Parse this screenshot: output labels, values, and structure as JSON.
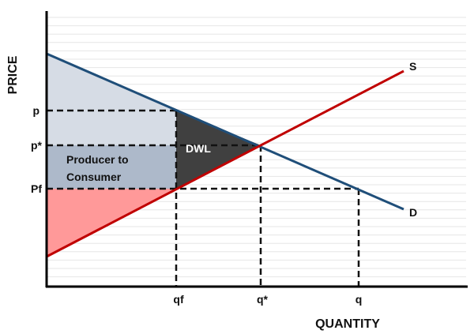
{
  "axes": {
    "x_label": "QUANTITY",
    "y_label": "PRICE"
  },
  "price_ticks": {
    "p": "p",
    "p_star": "p*",
    "pf": "Pf"
  },
  "quantity_ticks": {
    "qf": "qf",
    "q_star": "q*",
    "q": "q"
  },
  "curves": {
    "supply": "S",
    "demand": "D"
  },
  "regions": {
    "dwl": "DWL",
    "transfer_line1": "Producer to",
    "transfer_line2": "Consumer"
  },
  "colors": {
    "demand": "#1f4e79",
    "supply": "#c00000",
    "consumer_surplus": "#d6dce5",
    "transfer": "#adb9ca",
    "producer_surplus": "#ff9999",
    "dwl": "#404040"
  }
}
